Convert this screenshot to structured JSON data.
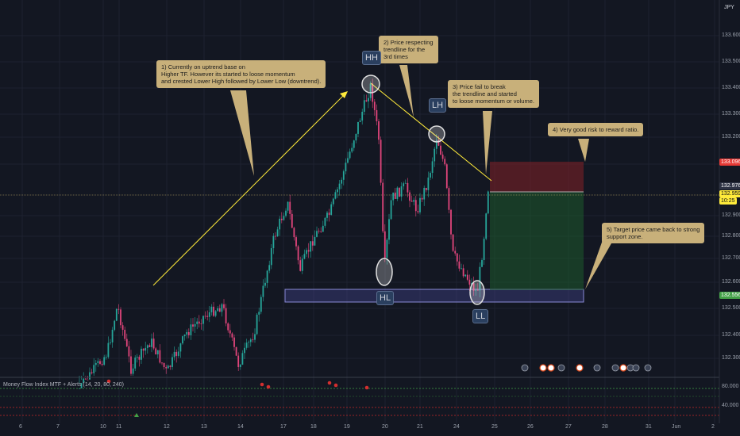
{
  "chart_data": {
    "type": "candlestick",
    "symbol_label": "JPY",
    "y_axis": {
      "ticks": [
        "133.600",
        "133.500",
        "133.400",
        "133.300",
        "133.200",
        "133.100",
        "132.900",
        "132.800",
        "132.700",
        "132.600",
        "132.500",
        "132.400",
        "132.300"
      ],
      "price_labels": [
        {
          "text": "133.096",
          "role": "stop",
          "color": "#e53935"
        },
        {
          "text": "132.976",
          "role": "entry",
          "color": "#2e3344"
        },
        {
          "text": "132.959",
          "role": "last",
          "color": "#ffeb3b"
        },
        {
          "text": "10:25",
          "role": "countdown",
          "color": "#ffeb3b"
        },
        {
          "text": "132.556",
          "role": "target",
          "color": "#43a047"
        }
      ]
    },
    "x_axis": {
      "ticks": [
        "6",
        "7",
        "10",
        "11",
        "12",
        "13",
        "14",
        "17",
        "18",
        "19",
        "20",
        "21",
        "24",
        "25",
        "26",
        "27",
        "28",
        "31",
        "Jun",
        "2"
      ]
    },
    "annotations": [
      {
        "id": "c1",
        "text": "1) Currently on uptrend base on\nHigher TF. However its started to loose momentum\nand crested Lower High followed by Lower Low (downtrend)."
      },
      {
        "id": "c2",
        "text": "2) Price respecting\ntrendline for the\n3rd times"
      },
      {
        "id": "c3",
        "text": "3) Price fail to break\nthe trendline and started\nto loose momentum or volume."
      },
      {
        "id": "c4",
        "text": "4) Very good risk to reward ratio."
      },
      {
        "id": "c5",
        "text": "5) Target price came back to strong\nsupport zone."
      }
    ],
    "structure_labels": [
      "HH",
      "LH",
      "HL",
      "LL"
    ],
    "indicator": {
      "name": "Money Flow Index MTF + Alerts (14, 20, 80, 240)",
      "ticks": [
        "80.000",
        "40.000"
      ]
    }
  }
}
